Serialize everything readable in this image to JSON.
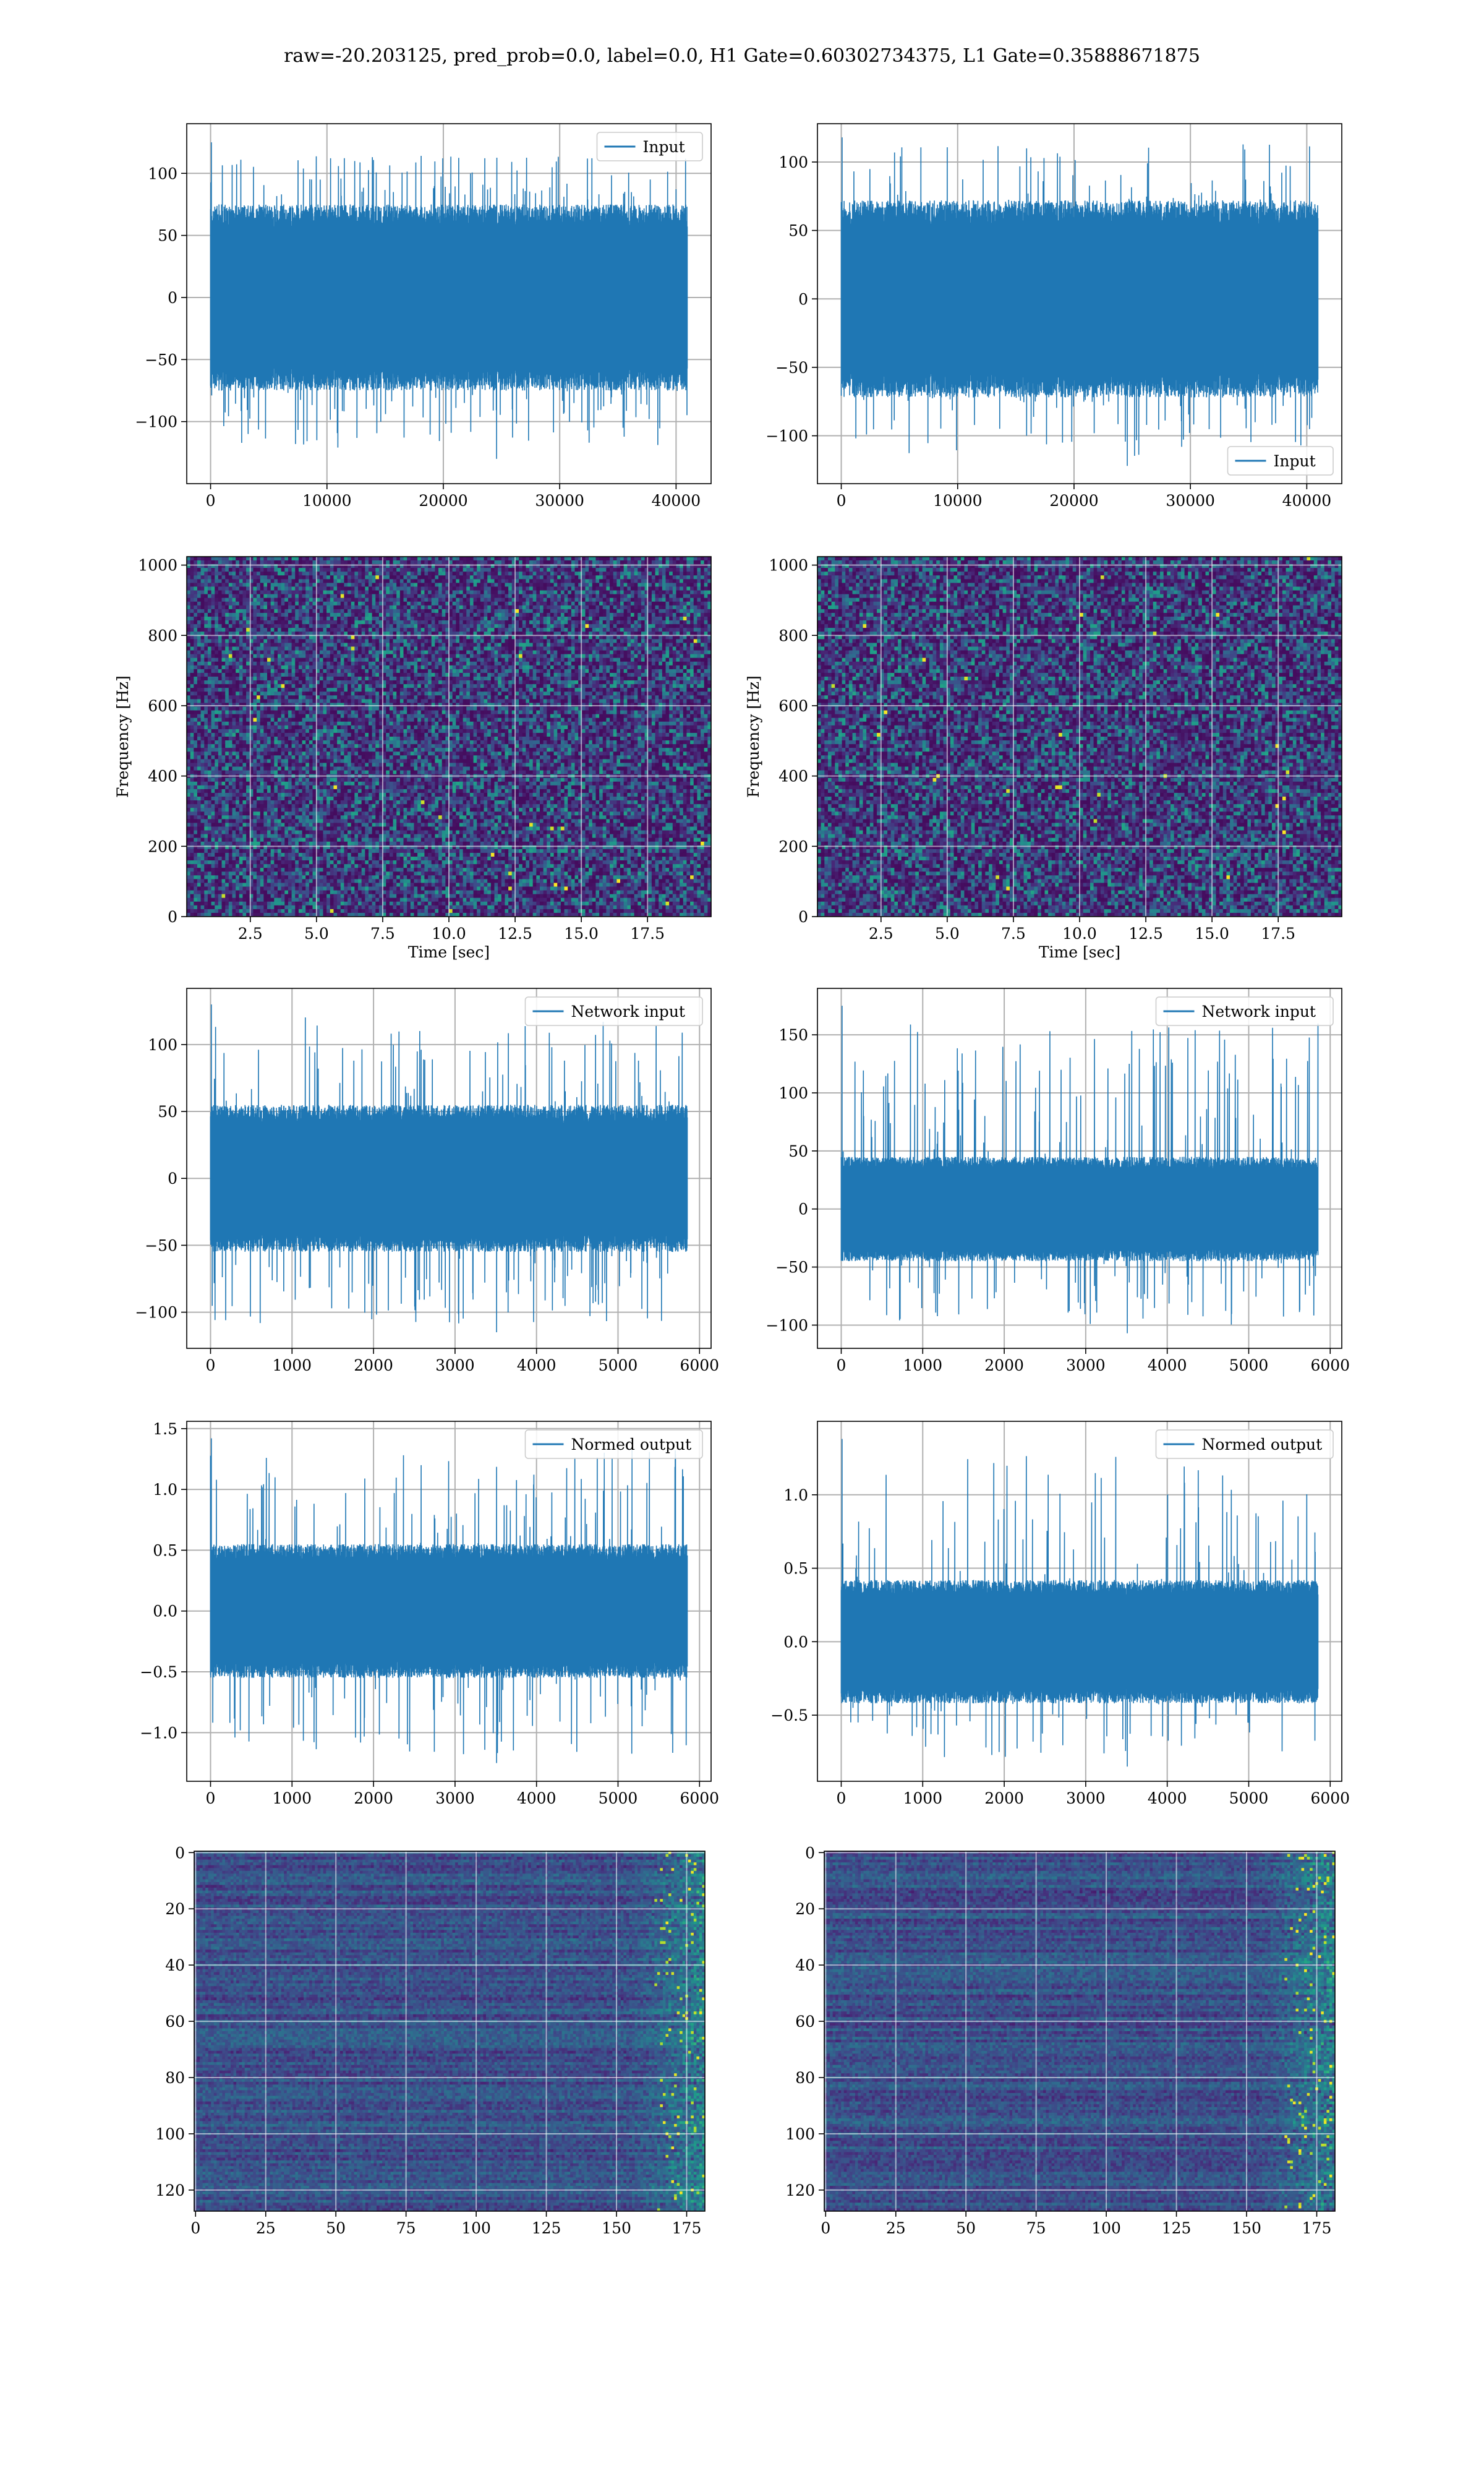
{
  "figure": {
    "suptitle": "raw=-20.203125, pred_prob=0.0, label=0.0, H1 Gate=0.60302734375, L1 Gate=0.35888671875"
  },
  "chart_data": [
    {
      "id": "h1-input",
      "type": "line",
      "grid": true,
      "legend_position": "top-right",
      "series": [
        {
          "name": "Input",
          "color": "#1f77b4",
          "n_points": 40960,
          "baseline_amplitude": 75,
          "envelope_range": [
            -130,
            125
          ]
        }
      ],
      "xlim": [
        -2048,
        43008
      ],
      "ylim": [
        -150,
        140
      ],
      "xticks": [
        0,
        10000,
        20000,
        30000,
        40000
      ],
      "xtick_labels": [
        "0",
        "10000",
        "20000",
        "30000",
        "40000"
      ],
      "yticks": [
        -100,
        -50,
        0,
        50,
        100
      ],
      "ytick_labels": [
        "−100",
        "−50",
        "0",
        "50",
        "100"
      ],
      "xlabel": "",
      "ylabel": ""
    },
    {
      "id": "l1-input",
      "type": "line",
      "grid": true,
      "legend_position": "bottom-right",
      "series": [
        {
          "name": "Input",
          "color": "#1f77b4",
          "n_points": 40960,
          "baseline_amplitude": 72,
          "envelope_range": [
            -122,
            118
          ]
        }
      ],
      "xlim": [
        -2048,
        43008
      ],
      "ylim": [
        -135,
        128
      ],
      "xticks": [
        0,
        10000,
        20000,
        30000,
        40000
      ],
      "xtick_labels": [
        "0",
        "10000",
        "20000",
        "30000",
        "40000"
      ],
      "yticks": [
        -100,
        -50,
        0,
        50,
        100
      ],
      "ytick_labels": [
        "−100",
        "−50",
        "0",
        "50",
        "100"
      ],
      "xlabel": "",
      "ylabel": ""
    },
    {
      "id": "h1-spectrogram",
      "type": "heatmap",
      "grid": true,
      "colormap": "viridis",
      "xlim": [
        0.1,
        19.9
      ],
      "ylim": [
        0,
        1024
      ],
      "xticks": [
        2.5,
        5.0,
        7.5,
        10.0,
        12.5,
        15.0,
        17.5
      ],
      "xtick_labels": [
        "2.5",
        "5.0",
        "7.5",
        "10.0",
        "12.5",
        "15.0",
        "17.5"
      ],
      "yticks": [
        0,
        200,
        400,
        600,
        800,
        1000
      ],
      "ytick_labels": [
        "0",
        "200",
        "400",
        "600",
        "800",
        "1000"
      ],
      "xlabel": "Time [sec]",
      "ylabel": "Frequency [Hz]"
    },
    {
      "id": "l1-spectrogram",
      "type": "heatmap",
      "grid": true,
      "colormap": "viridis",
      "xlim": [
        0.1,
        19.9
      ],
      "ylim": [
        0,
        1024
      ],
      "xticks": [
        2.5,
        5.0,
        7.5,
        10.0,
        12.5,
        15.0,
        17.5
      ],
      "xtick_labels": [
        "2.5",
        "5.0",
        "7.5",
        "10.0",
        "12.5",
        "15.0",
        "17.5"
      ],
      "yticks": [
        0,
        200,
        400,
        600,
        800,
        1000
      ],
      "ytick_labels": [
        "0",
        "200",
        "400",
        "600",
        "800",
        "1000"
      ],
      "xlabel": "Time [sec]",
      "ylabel": "Frequency [Hz]"
    },
    {
      "id": "h1-network-input",
      "type": "line",
      "grid": true,
      "legend_position": "top-right",
      "series": [
        {
          "name": "Network input",
          "color": "#1f77b4",
          "n_points": 5850,
          "baseline_amplitude": 55,
          "envelope_range": [
            -115,
            130
          ]
        }
      ],
      "xlim": [
        -292,
        6142
      ],
      "ylim": [
        -127,
        142
      ],
      "xticks": [
        0,
        1000,
        2000,
        3000,
        4000,
        5000,
        6000
      ],
      "xtick_labels": [
        "0",
        "1000",
        "2000",
        "3000",
        "4000",
        "5000",
        "6000"
      ],
      "yticks": [
        -100,
        -50,
        0,
        50,
        100
      ],
      "ytick_labels": [
        "−100",
        "−50",
        "0",
        "50",
        "100"
      ],
      "xlabel": "",
      "ylabel": ""
    },
    {
      "id": "l1-network-input",
      "type": "line",
      "grid": true,
      "legend_position": "top-right",
      "series": [
        {
          "name": "Network input",
          "color": "#1f77b4",
          "n_points": 5850,
          "baseline_amplitude": 45,
          "envelope_range": [
            -107,
            175
          ]
        }
      ],
      "xlim": [
        -292,
        6142
      ],
      "ylim": [
        -120,
        190
      ],
      "xticks": [
        0,
        1000,
        2000,
        3000,
        4000,
        5000,
        6000
      ],
      "xtick_labels": [
        "0",
        "1000",
        "2000",
        "3000",
        "4000",
        "5000",
        "6000"
      ],
      "yticks": [
        -100,
        -50,
        0,
        50,
        100,
        150
      ],
      "ytick_labels": [
        "−100",
        "−50",
        "0",
        "50",
        "100",
        "150"
      ],
      "xlabel": "",
      "ylabel": ""
    },
    {
      "id": "h1-normed-output",
      "type": "line",
      "grid": true,
      "legend_position": "top-right",
      "series": [
        {
          "name": "Normed output",
          "color": "#1f77b4",
          "n_points": 5850,
          "baseline_amplitude": 0.55,
          "envelope_range": [
            -1.25,
            1.42
          ]
        }
      ],
      "xlim": [
        -292,
        6142
      ],
      "ylim": [
        -1.4,
        1.56
      ],
      "xticks": [
        0,
        1000,
        2000,
        3000,
        4000,
        5000,
        6000
      ],
      "xtick_labels": [
        "0",
        "1000",
        "2000",
        "3000",
        "4000",
        "5000",
        "6000"
      ],
      "yticks": [
        -1.0,
        -0.5,
        0.0,
        0.5,
        1.0,
        1.5
      ],
      "ytick_labels": [
        "−1.0",
        "−0.5",
        "0.0",
        "0.5",
        "1.0",
        "1.5"
      ],
      "xlabel": "",
      "ylabel": ""
    },
    {
      "id": "l1-normed-output",
      "type": "line",
      "grid": true,
      "legend_position": "top-right",
      "series": [
        {
          "name": "Normed output",
          "color": "#1f77b4",
          "n_points": 5850,
          "baseline_amplitude": 0.42,
          "envelope_range": [
            -0.85,
            1.38
          ]
        }
      ],
      "xlim": [
        -292,
        6142
      ],
      "ylim": [
        -0.95,
        1.5
      ],
      "xticks": [
        0,
        1000,
        2000,
        3000,
        4000,
        5000,
        6000
      ],
      "xtick_labels": [
        "0",
        "1000",
        "2000",
        "3000",
        "4000",
        "5000",
        "6000"
      ],
      "yticks": [
        -0.5,
        0.0,
        0.5,
        1.0
      ],
      "ytick_labels": [
        "−0.5",
        "0.0",
        "0.5",
        "1.0"
      ],
      "xlabel": "",
      "ylabel": ""
    },
    {
      "id": "h1-feature-map",
      "type": "heatmap",
      "grid": true,
      "colormap": "viridis",
      "rows": 128,
      "cols": 182,
      "xlim": [
        -0.5,
        181.5
      ],
      "ylim": [
        127.5,
        -0.5
      ],
      "xticks": [
        0,
        25,
        50,
        75,
        100,
        125,
        150,
        175
      ],
      "xtick_labels": [
        "0",
        "25",
        "50",
        "75",
        "100",
        "125",
        "150",
        "175"
      ],
      "yticks": [
        0,
        20,
        40,
        60,
        80,
        100,
        120
      ],
      "ytick_labels": [
        "0",
        "20",
        "40",
        "60",
        "80",
        "100",
        "120"
      ],
      "xlabel": "",
      "ylabel": ""
    },
    {
      "id": "l1-feature-map",
      "type": "heatmap",
      "grid": true,
      "colormap": "viridis",
      "rows": 128,
      "cols": 182,
      "xlim": [
        -0.5,
        181.5
      ],
      "ylim": [
        127.5,
        -0.5
      ],
      "xticks": [
        0,
        25,
        50,
        75,
        100,
        125,
        150,
        175
      ],
      "xtick_labels": [
        "0",
        "25",
        "50",
        "75",
        "100",
        "125",
        "150",
        "175"
      ],
      "yticks": [
        0,
        20,
        40,
        60,
        80,
        100,
        120
      ],
      "ytick_labels": [
        "0",
        "20",
        "40",
        "60",
        "80",
        "100",
        "120"
      ],
      "xlabel": "",
      "ylabel": ""
    }
  ]
}
